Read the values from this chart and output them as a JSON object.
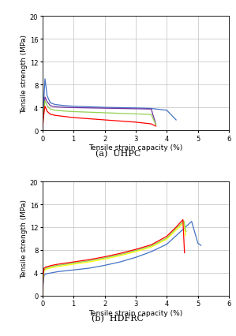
{
  "title_a": "(a)  UHPC",
  "title_b": "(b)  HDFRC",
  "xlabel": "Tensile strain capacity (%)",
  "ylabel": "Tensile strength (MPa)",
  "xlim": [
    0,
    6
  ],
  "ylim": [
    0,
    20
  ],
  "yticks": [
    0,
    4,
    8,
    12,
    16,
    20
  ],
  "xticks": [
    0,
    1,
    2,
    3,
    4,
    5,
    6
  ],
  "background_color": "#ffffff",
  "grid_color": "#c0c0c0",
  "uhpc_curves": [
    {
      "color": "#4472c4",
      "x": [
        0,
        0.03,
        0.08,
        0.15,
        0.25,
        0.4,
        0.7,
        1.0,
        1.5,
        2.0,
        2.5,
        3.0,
        3.5,
        4.0,
        4.3
      ],
      "y": [
        0,
        4.0,
        9.0,
        6.0,
        4.8,
        4.5,
        4.3,
        4.2,
        4.1,
        4.0,
        3.95,
        3.9,
        3.8,
        3.5,
        1.8
      ]
    },
    {
      "color": "#7030a0",
      "x": [
        0,
        0.03,
        0.08,
        0.15,
        0.25,
        0.4,
        0.7,
        1.0,
        1.5,
        2.0,
        2.5,
        3.0,
        3.5,
        3.65
      ],
      "y": [
        0,
        3.2,
        5.8,
        5.0,
        4.3,
        4.1,
        4.0,
        3.95,
        3.9,
        3.85,
        3.8,
        3.75,
        3.7,
        1.0
      ]
    },
    {
      "color": "#92d050",
      "x": [
        0,
        0.03,
        0.08,
        0.15,
        0.25,
        0.4,
        0.7,
        1.0,
        1.5,
        2.0,
        2.5,
        3.0,
        3.5,
        3.65
      ],
      "y": [
        0,
        2.8,
        5.2,
        4.3,
        3.7,
        3.5,
        3.35,
        3.25,
        3.15,
        3.05,
        2.95,
        2.85,
        2.75,
        0.9
      ]
    },
    {
      "color": "#ff0000",
      "x": [
        0,
        0.03,
        0.08,
        0.15,
        0.25,
        0.4,
        0.7,
        1.0,
        1.5,
        2.0,
        2.5,
        3.0,
        3.5,
        3.65
      ],
      "y": [
        0,
        2.2,
        4.2,
        3.3,
        2.8,
        2.6,
        2.4,
        2.2,
        2.0,
        1.8,
        1.6,
        1.4,
        1.1,
        0.7
      ]
    }
  ],
  "hdfrc_curves": [
    {
      "color": "#4472c4",
      "x": [
        0,
        0.02,
        0.05,
        0.1,
        0.3,
        0.5,
        1.0,
        1.5,
        2.0,
        2.5,
        3.0,
        3.5,
        4.0,
        4.3,
        4.5,
        4.8,
        5.0,
        5.1
      ],
      "y": [
        0,
        2.0,
        3.5,
        3.8,
        4.0,
        4.2,
        4.5,
        4.8,
        5.3,
        5.9,
        6.7,
        7.7,
        9.0,
        10.5,
        11.5,
        13.0,
        9.2,
        8.8
      ]
    },
    {
      "color": "#ffff00",
      "x": [
        0,
        0.02,
        0.05,
        0.1,
        0.3,
        0.5,
        1.0,
        1.5,
        2.0,
        2.5,
        3.0,
        3.5,
        4.0,
        4.3,
        4.5,
        4.55,
        4.6
      ],
      "y": [
        0,
        3.0,
        4.3,
        4.6,
        4.9,
        5.1,
        5.5,
        5.9,
        6.4,
        7.0,
        7.7,
        8.5,
        9.9,
        11.5,
        12.5,
        13.0,
        10.5
      ]
    },
    {
      "color": "#92d050",
      "x": [
        0,
        0.02,
        0.05,
        0.1,
        0.3,
        0.5,
        1.0,
        1.5,
        2.0,
        2.5,
        3.0,
        3.5,
        4.0,
        4.3,
        4.5,
        4.55,
        4.62
      ],
      "y": [
        0,
        3.2,
        4.5,
        4.8,
        5.1,
        5.3,
        5.7,
        6.1,
        6.6,
        7.2,
        7.9,
        8.7,
        10.1,
        11.8,
        12.8,
        13.1,
        11.2
      ]
    },
    {
      "color": "#ff0000",
      "x": [
        0,
        0.02,
        0.05,
        0.1,
        0.3,
        0.5,
        1.0,
        1.5,
        2.0,
        2.5,
        3.0,
        3.5,
        4.0,
        4.3,
        4.5,
        4.52,
        4.57
      ],
      "y": [
        0,
        3.5,
        4.8,
        5.0,
        5.3,
        5.5,
        5.9,
        6.3,
        6.8,
        7.4,
        8.1,
        8.9,
        10.4,
        12.0,
        13.2,
        13.3,
        7.5
      ]
    }
  ]
}
